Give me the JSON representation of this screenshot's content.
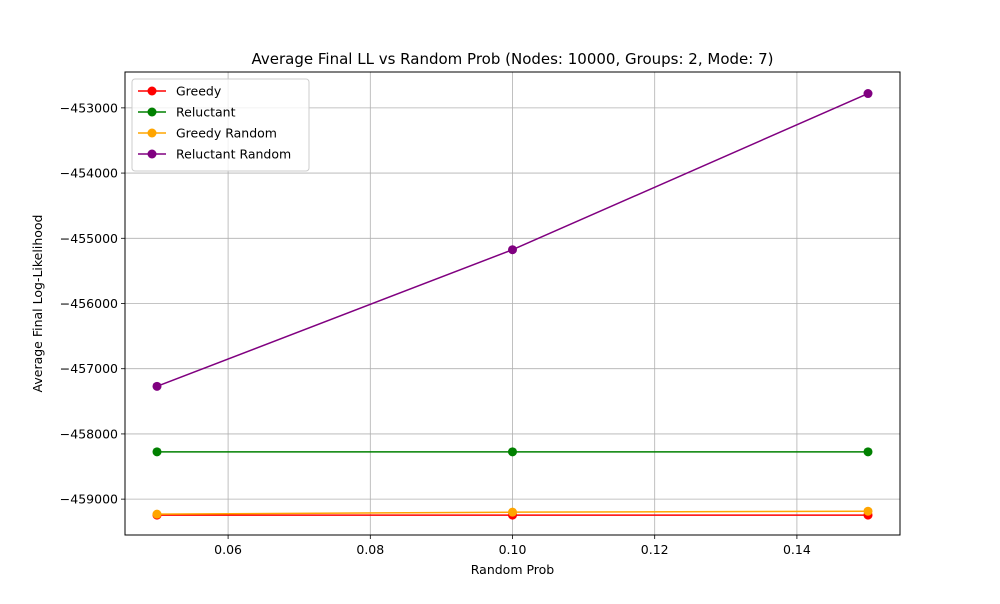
{
  "chart_data": {
    "type": "line",
    "title": "Average Final LL vs Random Prob (Nodes: 10000, Groups: 2, Mode: 7)",
    "xlabel": "Random Prob",
    "ylabel": "Average Final Log-Likelihood",
    "x": [
      0.05,
      0.1,
      0.15
    ],
    "xlim": [
      0.0455,
      0.1545
    ],
    "ylim": [
      -459550,
      -452450
    ],
    "xticks": [
      0.06,
      0.08,
      0.1,
      0.12,
      0.14
    ],
    "xtick_labels": [
      "0.06",
      "0.08",
      "0.10",
      "0.12",
      "0.14"
    ],
    "yticks": [
      -453000,
      -454000,
      -455000,
      -456000,
      -457000,
      -458000,
      -459000
    ],
    "ytick_labels": [
      "−453000",
      "−454000",
      "−455000",
      "−456000",
      "−457000",
      "−458000",
      "−459000"
    ],
    "grid": true,
    "legend_position": "top-left",
    "series": [
      {
        "name": "Greedy",
        "color": "#ff0000",
        "values": [
          -459245,
          -459245,
          -459245
        ]
      },
      {
        "name": "Reluctant",
        "color": "#008000",
        "values": [
          -458275,
          -458275,
          -458275
        ]
      },
      {
        "name": "Greedy Random",
        "color": "#ffa500",
        "values": [
          -459230,
          -459200,
          -459185
        ]
      },
      {
        "name": "Reluctant Random",
        "color": "#800080",
        "values": [
          -457270,
          -455175,
          -452780
        ]
      }
    ]
  }
}
